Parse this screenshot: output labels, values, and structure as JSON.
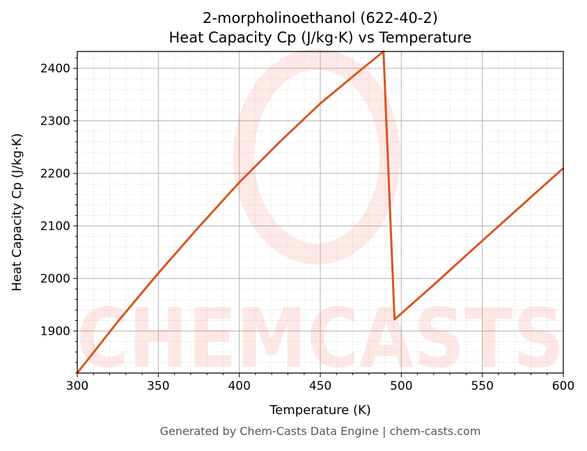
{
  "chart_data": {
    "type": "line",
    "title": "2-morpholinoethanol (622-40-2)",
    "subtitle": "Heat Capacity Cp (J/kg·K) vs Temperature",
    "xlabel": "Temperature (K)",
    "ylabel": "Heat Capacity Cp (J/kg·K)",
    "xlim": [
      300,
      600
    ],
    "ylim": [
      1820,
      2432
    ],
    "xticks": [
      300,
      350,
      400,
      450,
      500,
      550,
      600
    ],
    "yticks": [
      1900,
      2000,
      2100,
      2200,
      2300,
      2400
    ],
    "grid": true,
    "series": [
      {
        "name": "Cp",
        "color": "#d9541e",
        "x": [
          300,
          325,
          350,
          375,
          400,
          425,
          450,
          475,
          489,
          495.8,
          520,
          550,
          575,
          600
        ],
        "y": [
          1820,
          1918,
          2010,
          2098,
          2183,
          2260,
          2333,
          2397,
          2432,
          1922,
          1988,
          2072,
          2141,
          2210
        ]
      }
    ],
    "watermark": "CHEMCASTS",
    "footer": "Generated by Chem-Casts Data Engine | chem-casts.com"
  }
}
